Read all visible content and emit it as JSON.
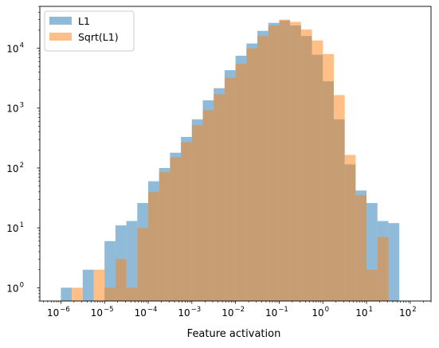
{
  "chart_data": {
    "type": "bar",
    "subtype": "histogram-overlay",
    "title": "",
    "xlabel": "Feature activation",
    "ylabel": "",
    "xscale": "log",
    "yscale": "log",
    "xlim": [
      3.3e-07,
      300
    ],
    "ylim": [
      0.6,
      50000
    ],
    "grid": false,
    "legend_position": "top-left",
    "x_ticks": [
      {
        "value": 1e-06,
        "base": "10",
        "exp": "−6"
      },
      {
        "value": 1e-05,
        "base": "10",
        "exp": "−5"
      },
      {
        "value": 0.0001,
        "base": "10",
        "exp": "−4"
      },
      {
        "value": 0.001,
        "base": "10",
        "exp": "−3"
      },
      {
        "value": 0.01,
        "base": "10",
        "exp": "−2"
      },
      {
        "value": 0.1,
        "base": "10",
        "exp": "−1"
      },
      {
        "value": 1,
        "base": "10",
        "exp": "0"
      },
      {
        "value": 10,
        "base": "10",
        "exp": "1"
      },
      {
        "value": 100,
        "base": "10",
        "exp": "2"
      }
    ],
    "y_ticks": [
      {
        "value": 1,
        "base": "10",
        "exp": "0"
      },
      {
        "value": 10,
        "base": "10",
        "exp": "1"
      },
      {
        "value": 100,
        "base": "10",
        "exp": "2"
      },
      {
        "value": 1000,
        "base": "10",
        "exp": "3"
      },
      {
        "value": 10000,
        "base": "10",
        "exp": "4"
      }
    ],
    "bin_edges": [
      1e-06,
      1.778e-06,
      3.162e-06,
      5.623e-06,
      1e-05,
      1.778e-05,
      3.162e-05,
      5.623e-05,
      0.0001,
      0.0001778,
      0.0003162,
      0.0005623,
      0.001,
      0.001778,
      0.003162,
      0.005623,
      0.01,
      0.01778,
      0.03162,
      0.05623,
      0.1,
      0.1778,
      0.3162,
      0.5623,
      1,
      1.778,
      3.162,
      5.623,
      10,
      17.78,
      31.62,
      56.23,
      100
    ],
    "series": [
      {
        "name": "L1",
        "color": "#1f77b4",
        "alpha": 0.5,
        "values": [
          1,
          0,
          2,
          0,
          6,
          11,
          13,
          26,
          60,
          100,
          180,
          330,
          650,
          1350,
          2150,
          4300,
          7500,
          12000,
          19500,
          26500,
          29000,
          24000,
          16000,
          7800,
          2800,
          650,
          115,
          42,
          26,
          13,
          12,
          0
        ]
      },
      {
        "name": "Sqrt(L1)",
        "color": "#ff7f0e",
        "alpha": 0.5,
        "values": [
          0,
          1,
          0,
          2,
          1,
          3,
          1,
          10,
          40,
          85,
          150,
          270,
          520,
          920,
          1700,
          3200,
          5500,
          10000,
          16000,
          24000,
          30000,
          27500,
          20500,
          13500,
          8000,
          1650,
          165,
          35,
          2,
          7,
          0,
          0
        ]
      }
    ]
  }
}
